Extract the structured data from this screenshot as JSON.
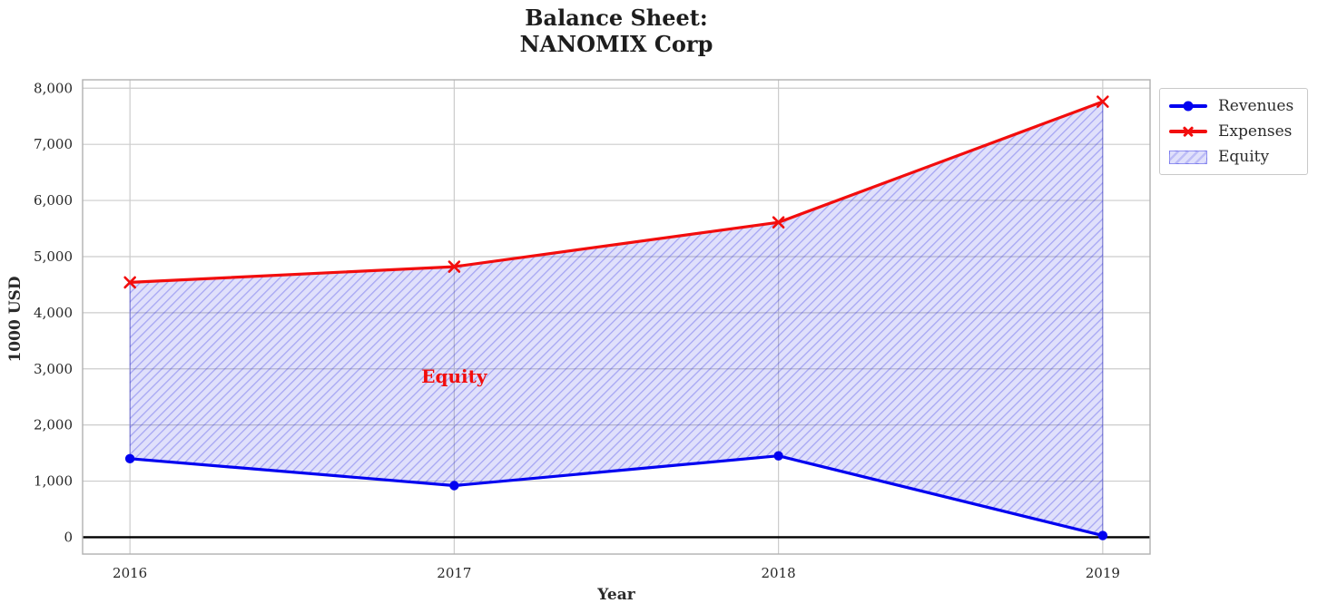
{
  "chart_data": {
    "type": "line",
    "title": "Balance Sheet:\nNANOMIX Corp",
    "title_line1": "Balance Sheet:",
    "title_line2": "NANOMIX Corp",
    "xlabel": "Year",
    "ylabel": "1000 USD",
    "x": [
      2016,
      2017,
      2018,
      2019
    ],
    "xtick_labels": [
      "2016",
      "2017",
      "2018",
      "2019"
    ],
    "series": [
      {
        "name": "Revenues",
        "color": "#0202f0",
        "marker": "circle",
        "values": [
          1400,
          920,
          1450,
          30
        ]
      },
      {
        "name": "Expenses",
        "color": "#f20d0d",
        "marker": "x",
        "values": [
          4540,
          4820,
          5610,
          7760
        ]
      }
    ],
    "area": {
      "name": "Equity",
      "between": [
        "Revenues",
        "Expenses"
      ],
      "fill_color": "#0000dd1f",
      "hatch_color": "#0000dd42",
      "edge_color": "#0000dd59",
      "hatch": "/"
    },
    "annotation": {
      "text": "Equity",
      "x": 2017,
      "y": 2870,
      "color": "#f20d0d"
    },
    "yticks": [
      0,
      1000,
      2000,
      3000,
      4000,
      5000,
      6000,
      7000,
      8000
    ],
    "ytick_labels": [
      "0",
      "1,000",
      "2,000",
      "3,000",
      "4,000",
      "5,000",
      "6,000",
      "7,000",
      "8,000"
    ],
    "ylim": [
      -300,
      8150
    ],
    "xlim": [
      2015.854,
      2019.146
    ],
    "grid": true,
    "zero_line": {
      "y": 0,
      "color": "#000000"
    },
    "legend_position": "upper right, outside axes",
    "style": {
      "grid_color": "#cccccc",
      "spine_color": "#b0b0b0",
      "tick_label_color": "#262626"
    }
  }
}
